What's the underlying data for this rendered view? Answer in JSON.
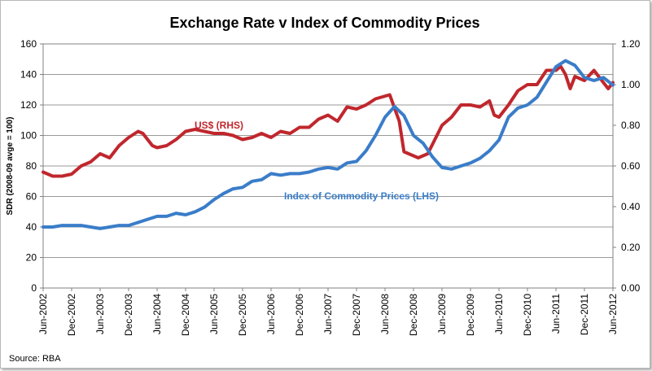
{
  "chart_data": {
    "type": "line",
    "title": "Exchange Rate v Index of Commodity Prices",
    "ylabel_left": "SDR (2008-09 avge = 100)",
    "ylabel_right": "",
    "xlabel": "",
    "source": "Source: RBA",
    "grid": true,
    "ylim_left": [
      0,
      160
    ],
    "ylim_right": [
      0,
      1.2
    ],
    "yticks_left": [
      "0",
      "20",
      "40",
      "60",
      "80",
      "100",
      "120",
      "140",
      "160"
    ],
    "yticks_right": [
      "0.00",
      "0.20",
      "0.40",
      "0.60",
      "0.80",
      "1.00",
      "1.20"
    ],
    "x_ticks": [
      "Jun-2002",
      "Dec-2002",
      "Jun-2003",
      "Dec-2003",
      "Jun-2004",
      "Dec-2004",
      "Jun-2005",
      "Dec-2005",
      "Jun-2006",
      "Dec-2006",
      "Jun-2007",
      "Dec-2007",
      "Jun-2008",
      "Dec-2008",
      "Jun-2009",
      "Dec-2009",
      "Jun-2010",
      "Dec-2010",
      "Jun-2011",
      "Dec-2011",
      "Jun-2012"
    ],
    "x_range": [
      "2002-06",
      "2012-06"
    ],
    "series": [
      {
        "name": "US$ (RHS)",
        "axis": "right",
        "color": "#c0272d",
        "points": [
          [
            "2002-06",
            0.57
          ],
          [
            "2002-08",
            0.55
          ],
          [
            "2002-10",
            0.55
          ],
          [
            "2002-12",
            0.56
          ],
          [
            "2003-02",
            0.6
          ],
          [
            "2003-04",
            0.62
          ],
          [
            "2003-06",
            0.66
          ],
          [
            "2003-08",
            0.64
          ],
          [
            "2003-10",
            0.7
          ],
          [
            "2003-12",
            0.74
          ],
          [
            "2004-02",
            0.77
          ],
          [
            "2004-03",
            0.76
          ],
          [
            "2004-05",
            0.7
          ],
          [
            "2004-06",
            0.69
          ],
          [
            "2004-08",
            0.7
          ],
          [
            "2004-10",
            0.73
          ],
          [
            "2004-12",
            0.77
          ],
          [
            "2005-02",
            0.78
          ],
          [
            "2005-04",
            0.77
          ],
          [
            "2005-06",
            0.76
          ],
          [
            "2005-08",
            0.76
          ],
          [
            "2005-10",
            0.75
          ],
          [
            "2005-12",
            0.73
          ],
          [
            "2006-02",
            0.74
          ],
          [
            "2006-04",
            0.76
          ],
          [
            "2006-06",
            0.74
          ],
          [
            "2006-08",
            0.77
          ],
          [
            "2006-10",
            0.76
          ],
          [
            "2006-12",
            0.79
          ],
          [
            "2007-02",
            0.79
          ],
          [
            "2007-04",
            0.83
          ],
          [
            "2007-06",
            0.85
          ],
          [
            "2007-08",
            0.82
          ],
          [
            "2007-10",
            0.89
          ],
          [
            "2007-12",
            0.88
          ],
          [
            "2008-02",
            0.9
          ],
          [
            "2008-04",
            0.93
          ],
          [
            "2008-07",
            0.95
          ],
          [
            "2008-09",
            0.82
          ],
          [
            "2008-10",
            0.67
          ],
          [
            "2008-12",
            0.65
          ],
          [
            "2009-01",
            0.64
          ],
          [
            "2009-03",
            0.66
          ],
          [
            "2009-06",
            0.8
          ],
          [
            "2009-08",
            0.84
          ],
          [
            "2009-10",
            0.9
          ],
          [
            "2009-12",
            0.9
          ],
          [
            "2010-02",
            0.89
          ],
          [
            "2010-04",
            0.92
          ],
          [
            "2010-05",
            0.85
          ],
          [
            "2010-06",
            0.84
          ],
          [
            "2010-08",
            0.9
          ],
          [
            "2010-10",
            0.97
          ],
          [
            "2010-12",
            1.0
          ],
          [
            "2011-02",
            1.0
          ],
          [
            "2011-04",
            1.07
          ],
          [
            "2011-06",
            1.07
          ],
          [
            "2011-07",
            1.09
          ],
          [
            "2011-08",
            1.05
          ],
          [
            "2011-09",
            0.98
          ],
          [
            "2011-10",
            1.04
          ],
          [
            "2011-12",
            1.02
          ],
          [
            "2012-02",
            1.07
          ],
          [
            "2012-03",
            1.04
          ],
          [
            "2012-05",
            0.98
          ],
          [
            "2012-06",
            1.01
          ]
        ]
      },
      {
        "name": "Index of Commodity Prices (LHS)",
        "axis": "left",
        "color": "#3a7dc9",
        "points": [
          [
            "2002-06",
            40
          ],
          [
            "2002-08",
            40
          ],
          [
            "2002-10",
            41
          ],
          [
            "2002-12",
            41
          ],
          [
            "2003-02",
            41
          ],
          [
            "2003-04",
            40
          ],
          [
            "2003-06",
            39
          ],
          [
            "2003-08",
            40
          ],
          [
            "2003-10",
            41
          ],
          [
            "2003-12",
            41
          ],
          [
            "2004-02",
            43
          ],
          [
            "2004-04",
            45
          ],
          [
            "2004-06",
            47
          ],
          [
            "2004-08",
            47
          ],
          [
            "2004-10",
            49
          ],
          [
            "2004-12",
            48
          ],
          [
            "2005-02",
            50
          ],
          [
            "2005-04",
            53
          ],
          [
            "2005-06",
            58
          ],
          [
            "2005-08",
            62
          ],
          [
            "2005-10",
            65
          ],
          [
            "2005-12",
            66
          ],
          [
            "2006-02",
            70
          ],
          [
            "2006-04",
            71
          ],
          [
            "2006-06",
            75
          ],
          [
            "2006-08",
            74
          ],
          [
            "2006-10",
            75
          ],
          [
            "2006-12",
            75
          ],
          [
            "2007-02",
            76
          ],
          [
            "2007-04",
            78
          ],
          [
            "2007-06",
            79
          ],
          [
            "2007-08",
            78
          ],
          [
            "2007-10",
            82
          ],
          [
            "2007-12",
            83
          ],
          [
            "2008-02",
            90
          ],
          [
            "2008-04",
            100
          ],
          [
            "2008-06",
            112
          ],
          [
            "2008-08",
            119
          ],
          [
            "2008-10",
            113
          ],
          [
            "2008-12",
            100
          ],
          [
            "2009-02",
            95
          ],
          [
            "2009-04",
            86
          ],
          [
            "2009-06",
            79
          ],
          [
            "2009-08",
            78
          ],
          [
            "2009-10",
            80
          ],
          [
            "2009-12",
            82
          ],
          [
            "2010-02",
            85
          ],
          [
            "2010-04",
            90
          ],
          [
            "2010-06",
            97
          ],
          [
            "2010-08",
            112
          ],
          [
            "2010-10",
            118
          ],
          [
            "2010-12",
            120
          ],
          [
            "2011-02",
            125
          ],
          [
            "2011-04",
            135
          ],
          [
            "2011-06",
            145
          ],
          [
            "2011-08",
            149
          ],
          [
            "2011-10",
            146
          ],
          [
            "2011-12",
            138
          ],
          [
            "2012-02",
            136
          ],
          [
            "2012-04",
            138
          ],
          [
            "2012-06",
            133
          ]
        ]
      }
    ],
    "annotations": [
      {
        "text": "US$ (RHS)",
        "color": "#c0272d"
      },
      {
        "text": "Index of Commodity Prices (LHS)",
        "color": "#3a7dc9"
      }
    ]
  }
}
